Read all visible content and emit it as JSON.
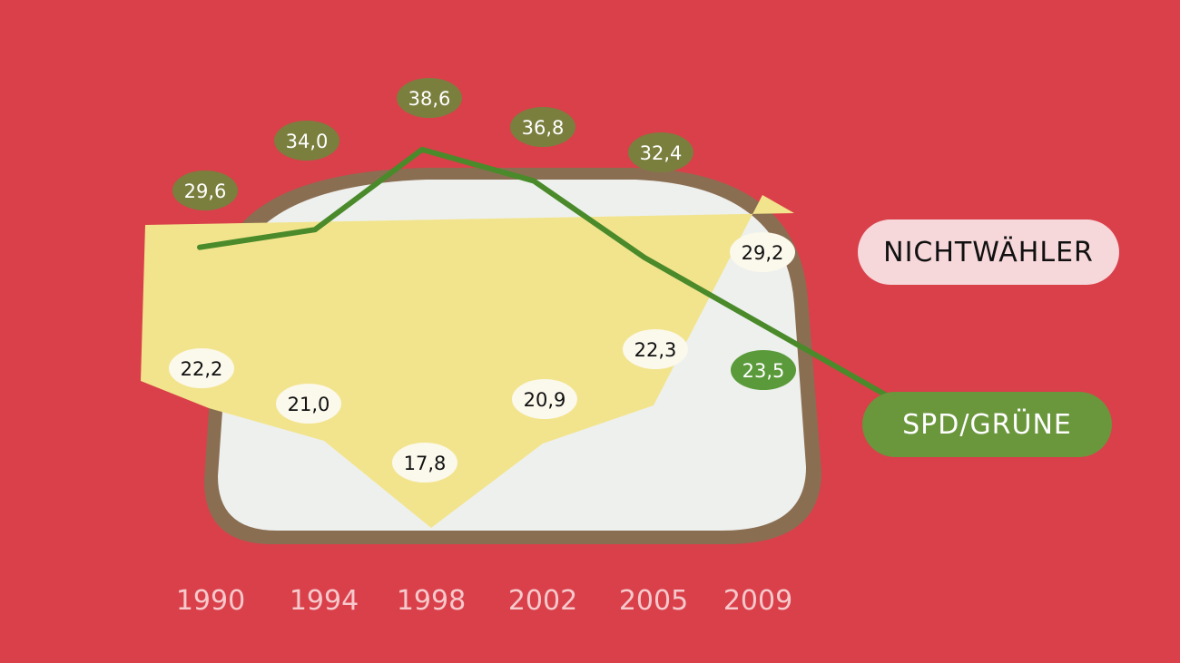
{
  "chart_data": {
    "type": "line",
    "categories": [
      "1990",
      "1994",
      "1998",
      "2002",
      "2005",
      "2009"
    ],
    "series": [
      {
        "name": "SPD/GRÜNE",
        "values": [
          29.6,
          34.0,
          38.6,
          36.8,
          32.4,
          23.5
        ],
        "labels": [
          "29,6",
          "34,0",
          "38,6",
          "36,8",
          "32,4",
          "23,5"
        ],
        "color": "#4a8a2a"
      },
      {
        "name": "NICHTWÄHLER",
        "values": [
          22.2,
          21.0,
          17.8,
          20.9,
          22.3,
          29.2
        ],
        "labels": [
          "22,2",
          "21,0",
          "17,8",
          "20,9",
          "22,3",
          "29,2"
        ],
        "color": "#f2e48c"
      }
    ],
    "grid": false,
    "legend": "right"
  },
  "colors": {
    "background": "#d9404a",
    "label_green": "#7a7f3e",
    "label_last_green": "#5a9a3a",
    "tick_text": "#f6c9cc"
  }
}
